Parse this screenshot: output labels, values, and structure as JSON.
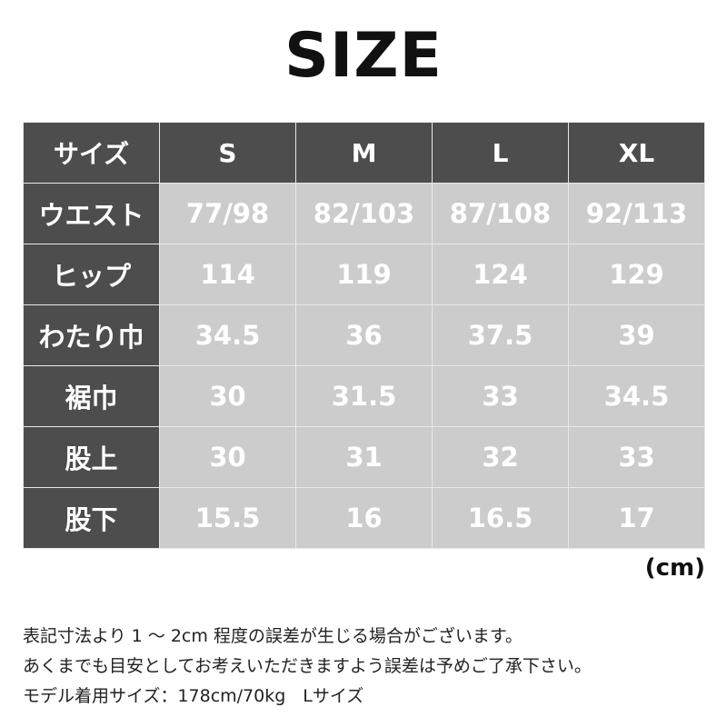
{
  "title": "SIZE",
  "table": {
    "header": [
      "サイズ",
      "S",
      "M",
      "L",
      "XL"
    ],
    "rows": [
      {
        "label": "ウエスト",
        "values": [
          "77/98",
          "82/103",
          "87/108",
          "92/113"
        ]
      },
      {
        "label": "ヒップ",
        "values": [
          "114",
          "119",
          "124",
          "129"
        ]
      },
      {
        "label": "わたり巾",
        "values": [
          "34.5",
          "36",
          "37.5",
          "39"
        ]
      },
      {
        "label": "裾巾",
        "values": [
          "30",
          "31.5",
          "33",
          "34.5"
        ]
      },
      {
        "label": "股上",
        "values": [
          "30",
          "31",
          "32",
          "33"
        ]
      },
      {
        "label": "股下",
        "values": [
          "15.5",
          "16",
          "16.5",
          "17"
        ]
      }
    ]
  },
  "unit": "(cm)",
  "notes": [
    "表記寸法より 1 〜 2cm 程度の誤差が生じる場合がございます。",
    "あくまでも目安としてお考えいただきますよう誤差は予めご了承下さい。",
    "モデル着用サイズ：178cm/70kg　Lサイズ"
  ],
  "colors": {
    "header_bg": "#4d4d4d",
    "value_bg": "#cccccc",
    "text": "#ffffff"
  }
}
